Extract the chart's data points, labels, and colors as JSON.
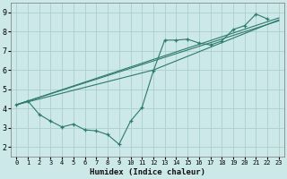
{
  "bg_color": "#cce8e8",
  "grid_color": "#aad0d0",
  "line_color": "#2d7a6e",
  "xlabel": "Humidex (Indice chaleur)",
  "xlim": [
    -0.5,
    23.5
  ],
  "ylim": [
    1.5,
    9.5
  ],
  "xticks": [
    0,
    1,
    2,
    3,
    4,
    5,
    6,
    7,
    8,
    9,
    10,
    11,
    12,
    13,
    14,
    15,
    16,
    17,
    18,
    19,
    20,
    21,
    22,
    23
  ],
  "yticks": [
    2,
    3,
    4,
    5,
    6,
    7,
    8,
    9
  ],
  "series": [
    {
      "x": [
        0,
        1,
        2,
        3,
        4,
        5,
        6,
        7,
        8,
        9,
        10,
        11,
        12,
        13,
        14,
        15,
        16,
        17,
        18,
        19,
        20,
        21,
        22
      ],
      "y": [
        4.2,
        4.4,
        3.7,
        3.35,
        3.05,
        3.2,
        2.9,
        2.85,
        2.65,
        2.15,
        3.35,
        4.05,
        5.95,
        7.55,
        7.55,
        7.6,
        7.4,
        7.3,
        7.5,
        8.1,
        8.3,
        8.9,
        8.65
      ],
      "has_markers": true
    },
    {
      "x": [
        0,
        23
      ],
      "y": [
        4.2,
        8.55
      ],
      "has_markers": false
    },
    {
      "x": [
        0,
        23
      ],
      "y": [
        4.2,
        8.7
      ],
      "has_markers": false
    },
    {
      "x": [
        0,
        12,
        23
      ],
      "y": [
        4.2,
        6.0,
        8.6
      ],
      "has_markers": false
    }
  ]
}
